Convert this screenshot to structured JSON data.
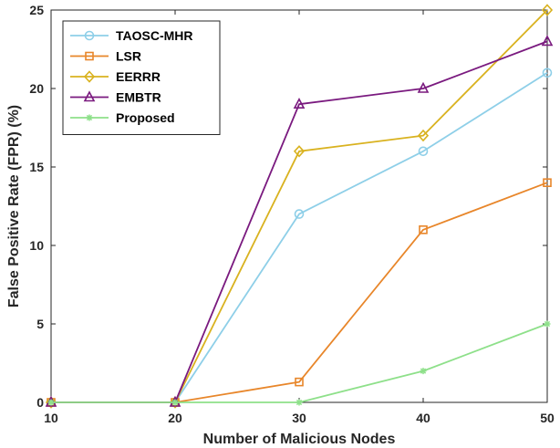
{
  "chart_data": {
    "type": "line",
    "title": "",
    "xlabel": "Number of Malicious Nodes",
    "ylabel": "False Positive Rate (FPR) (%)",
    "x": [
      10,
      20,
      30,
      40,
      50
    ],
    "xlim": [
      10,
      50
    ],
    "ylim": [
      0,
      25
    ],
    "xticks": [
      10,
      20,
      30,
      40,
      50
    ],
    "yticks": [
      0,
      5,
      10,
      15,
      20,
      25
    ],
    "grid": false,
    "legend_position": "top-left",
    "series": [
      {
        "name": "TAOSC-MHR",
        "color": "#8ecfe8",
        "marker": "circle",
        "values": [
          0,
          0,
          12,
          16,
          21
        ]
      },
      {
        "name": "LSR",
        "color": "#e8862a",
        "marker": "square",
        "values": [
          0,
          0,
          1.3,
          11,
          14
        ]
      },
      {
        "name": "EERRR",
        "color": "#d9b21f",
        "marker": "diamond",
        "values": [
          0,
          0,
          16,
          17,
          25
        ]
      },
      {
        "name": "EMBTR",
        "color": "#7a1a7f",
        "marker": "triangle",
        "values": [
          0,
          0,
          19,
          20,
          23
        ]
      },
      {
        "name": "Proposed",
        "color": "#8ee08a",
        "marker": "asterisk",
        "values": [
          0,
          0,
          0,
          2,
          5
        ]
      }
    ]
  }
}
